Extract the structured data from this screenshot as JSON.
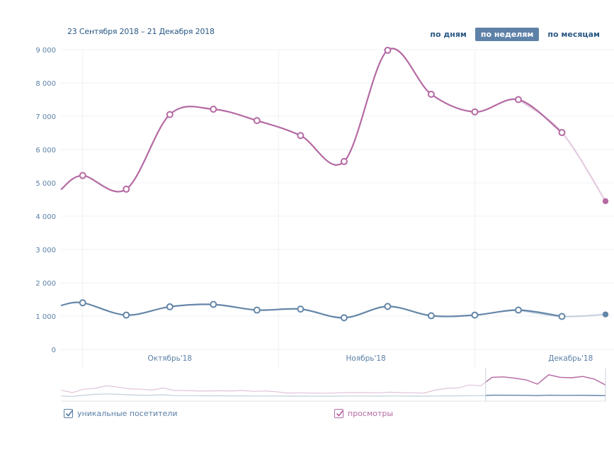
{
  "header": {
    "date_range": "23 Сентября 2018 – 21 Декабря 2018",
    "period_day": "по дням",
    "period_week": "по неделям",
    "period_month": "по месяцам",
    "active_period": "week"
  },
  "legend": {
    "unique": "уникальные посетители",
    "views": "просмотры"
  },
  "colors": {
    "views": "#b56aa3",
    "unique": "#6586a8",
    "grid": "#eef0f3",
    "tick": "#5b7fa6",
    "active_btn": "#5e81a8"
  },
  "chart_data": {
    "type": "line",
    "title": "",
    "xlabel": "",
    "ylabel": "",
    "ylim": [
      0,
      9000
    ],
    "y_ticks": [
      0,
      1000,
      2000,
      3000,
      4000,
      5000,
      6000,
      7000,
      8000,
      9000
    ],
    "y_tick_labels": [
      "0",
      "1 000",
      "2 000",
      "3 000",
      "4 000",
      "5 000",
      "6 000",
      "7 000",
      "8 000",
      "9 000"
    ],
    "x_range": [
      -0.5,
      12.0
    ],
    "x_ticks": [
      2,
      6.5,
      11.2
    ],
    "x_tick_labels": [
      "Октябрь'18",
      "Ноябрь'18",
      "Декабрь'18"
    ],
    "month_boundaries": [
      0,
      4.5,
      9
    ],
    "series": [
      {
        "name": "просмотры",
        "x": [
          -0.5,
          0,
          1,
          2,
          3,
          4,
          5,
          6,
          7,
          8,
          9,
          10,
          11,
          12
        ],
        "values": [
          4800,
          5220,
          4810,
          7050,
          7210,
          6870,
          6420,
          5640,
          8980,
          7660,
          7130,
          7500,
          6510,
          4450
        ],
        "start_open": 1,
        "partial_last": true
      },
      {
        "name": "уникальные посетители",
        "x": [
          -0.5,
          0,
          1,
          2,
          3,
          4,
          5,
          6,
          7,
          8,
          9,
          10,
          11,
          12
        ],
        "values": [
          1320,
          1400,
          1030,
          1280,
          1350,
          1180,
          1210,
          950,
          1290,
          1010,
          1030,
          1180,
          990,
          1050
        ],
        "start_open": 1,
        "partial_last": true
      }
    ],
    "overview": {
      "views": [
        0.8,
        0.5,
        0.9,
        1.0,
        1.3,
        1.15,
        0.95,
        0.9,
        0.8,
        1.05,
        0.75,
        0.75,
        0.7,
        0.7,
        0.72,
        0.7,
        0.75,
        0.65,
        0.7,
        0.6,
        0.45,
        0.48,
        0.45,
        0.44,
        0.45,
        0.52,
        0.5,
        0.5,
        0.48,
        0.55,
        0.5,
        0.48,
        0.45,
        0.8,
        1.0,
        1.05,
        1.4,
        1.3,
        2.3,
        2.35,
        2.2,
        2.0,
        1.5,
        2.6,
        2.3,
        2.25,
        2.4,
        2.1,
        1.4
      ],
      "unique": [
        0.1,
        0.05,
        0.2,
        0.3,
        0.35,
        0.3,
        0.25,
        0.2,
        0.2,
        0.25,
        0.15,
        0.15,
        0.14,
        0.12,
        0.13,
        0.12,
        0.12,
        0.1,
        0.11,
        0.1,
        0.08,
        0.09,
        0.08,
        0.08,
        0.08,
        0.1,
        0.1,
        0.1,
        0.09,
        0.11,
        0.1,
        0.09,
        0.08,
        0.1,
        0.12,
        0.12,
        0.15,
        0.14,
        0.2,
        0.2,
        0.19,
        0.18,
        0.15,
        0.2,
        0.18,
        0.18,
        0.19,
        0.17,
        0.15
      ],
      "window_start": 0.78
    }
  }
}
